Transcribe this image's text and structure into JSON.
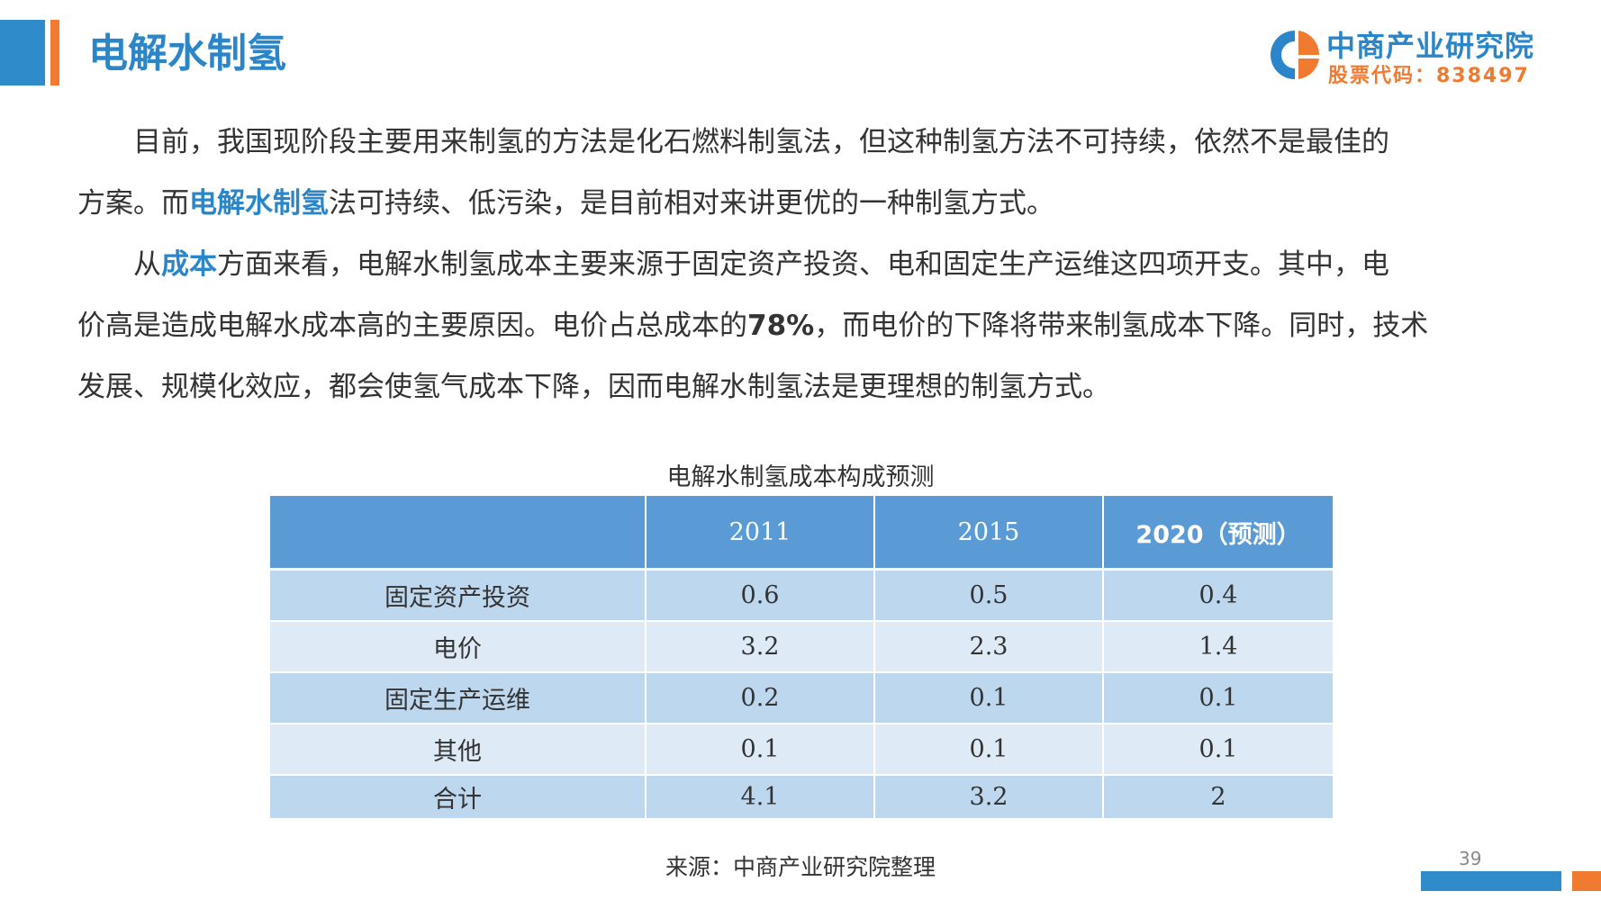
{
  "header": {
    "title": "电解水制氢",
    "logo": {
      "name": "中商产业研究院",
      "stock_code": "股票代码：838497",
      "colors": {
        "blue": "#2a86c8",
        "orange": "#f07a30"
      }
    }
  },
  "body": {
    "para1": {
      "line1": "目前，我国现阶段主要用来制氢的方法是化石燃料制氢法，但这种制氢方法不可持续，依然不是最佳的",
      "line2_a": "方案。而",
      "line2_hl": "电解水制氢",
      "line2_b": "法可持续、低污染，是目前相对来讲更优的一种制氢方式。"
    },
    "para2": {
      "l1_a": "从",
      "l1_hl": "成本",
      "l1_b": "方面来看，电解水制氢成本主要来源于固定资产投资、电和固定生产运维这四项开支。其中，电",
      "l2_a": "价高是造成电解水成本高的主要原因。电价占总成本的",
      "l2_num": "78%",
      "l2_b": "，而电价的下降将带来制氢成本下降。同时，技术",
      "l3": "发展、规模化效应，都会使氢气成本下降，因而电解水制氢法是更理想的制氢方式。"
    }
  },
  "table": {
    "caption": "电解水制氢成本构成预测",
    "headers": [
      "",
      "2011",
      "2015",
      "2020（预测）"
    ],
    "rows": [
      [
        "固定资产投资",
        "0.6",
        "0.5",
        "0.4"
      ],
      [
        "电价",
        "3.2",
        "2.3",
        "1.4"
      ],
      [
        "固定生产运维",
        "0.2",
        "0.1",
        "0.1"
      ],
      [
        "其他",
        "0.1",
        "0.1",
        "0.1"
      ],
      [
        "合计",
        "4.1",
        "3.2",
        "2"
      ]
    ],
    "colors": {
      "header": "#5a9bd5",
      "row_dark": "#bdd7ee",
      "row_light": "#deebf7"
    }
  },
  "footer": {
    "source": "来源：中商产业研究院整理",
    "page_number": "39"
  }
}
